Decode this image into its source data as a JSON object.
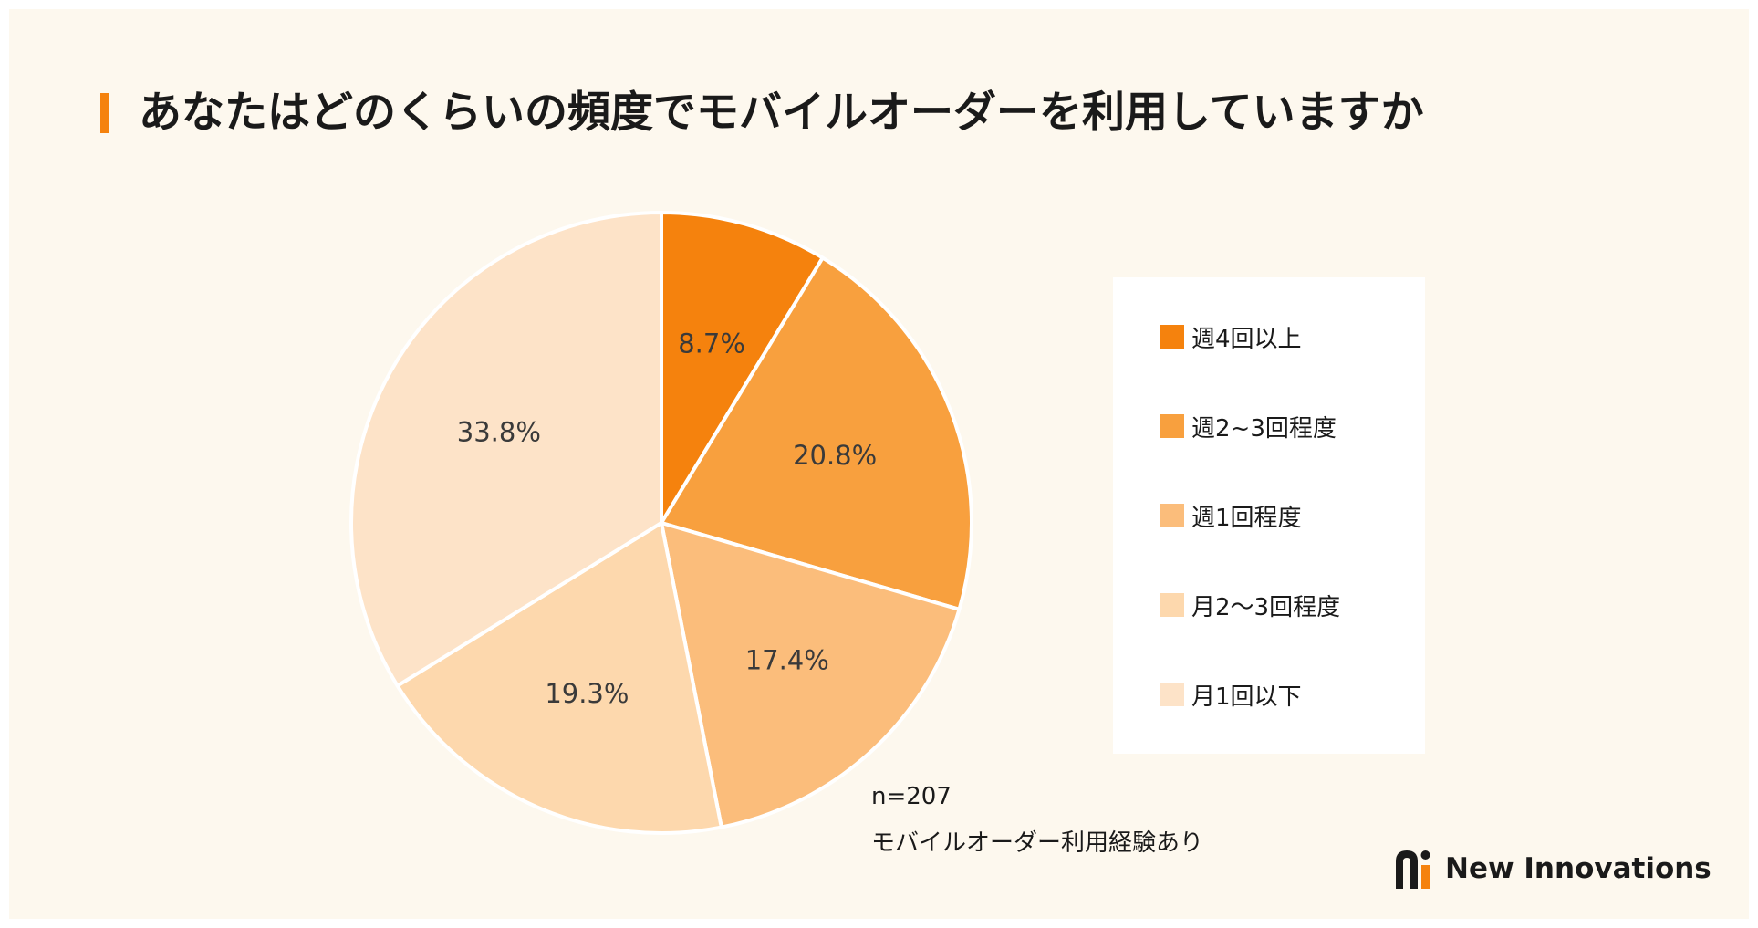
{
  "title": "あなたはどのくらいの頻度でモバイルオーダーを利用していますか",
  "colors": {
    "background": "#fdf8ee",
    "accent": "#f5820d",
    "series": [
      "#f5820d",
      "#f8a03e",
      "#fbbd7b",
      "#fdd8ad",
      "#fde3c8"
    ]
  },
  "chart_data": {
    "type": "pie",
    "title": "あなたはどのくらいの頻度でモバイルオーダーを利用していますか",
    "categories": [
      "週4回以上",
      "週2~3回程度",
      "週1回程度",
      "月2〜3回程度",
      "月1回以下"
    ],
    "values": [
      8.7,
      20.8,
      17.4,
      19.3,
      33.8
    ],
    "value_labels": [
      "8.7%",
      "20.8%",
      "17.4%",
      "19.3%",
      "33.8%"
    ],
    "start": "top, clockwise",
    "legend_position": "right"
  },
  "note": {
    "sample": "n=207",
    "condition": "モバイルオーダー利用経験あり"
  },
  "brand": {
    "name": "New Innovations",
    "logo_icon": "new-innovations-logo-icon"
  }
}
